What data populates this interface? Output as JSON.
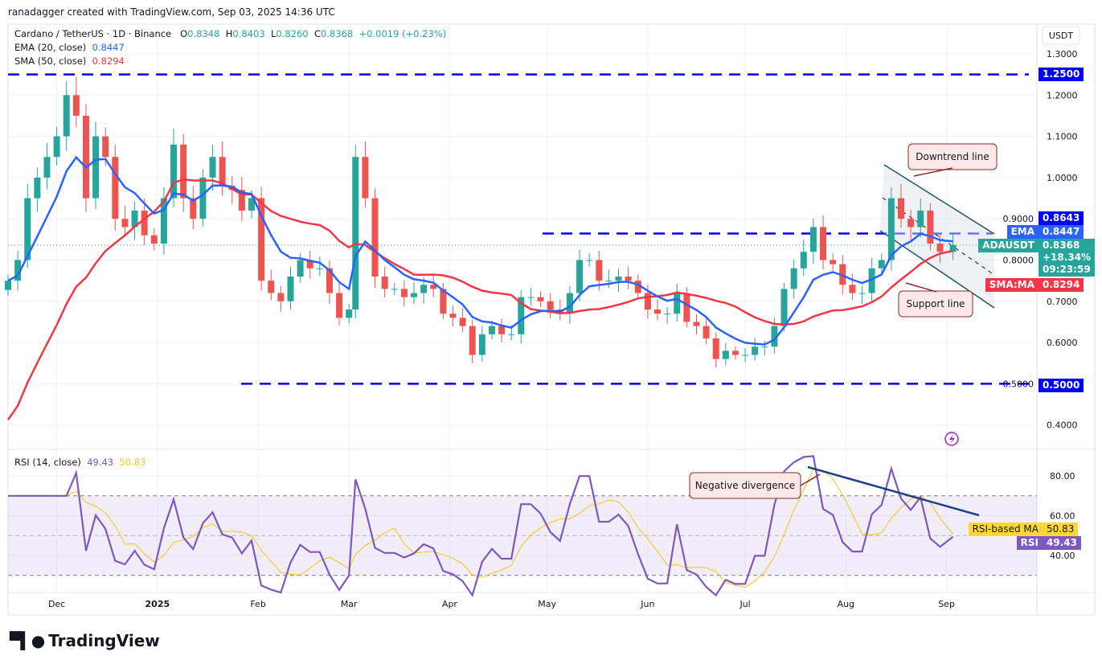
{
  "credit": "ranadagger created with TradingView.com, Sep 03, 2025 14:36 UTC",
  "legend": {
    "symbol": "Cardano / TetherUS · 1D · Binance",
    "o_label": "O",
    "o": "0.8348",
    "h_label": "H",
    "h": "0.8403",
    "l_label": "L",
    "l": "0.8260",
    "c_label": "C",
    "c": "0.8368",
    "change": "+0.0019 (+0.23%)",
    "ema_label": "EMA (20, close)",
    "ema": "0.8447",
    "sma_label": "SMA (50, close)",
    "sma": "0.8294",
    "rsi_label": "RSI (14, close)",
    "rsi": "49.43",
    "rsi_ma": "50.83"
  },
  "currency": "USDT",
  "tags": {
    "level_high": "0.8643",
    "ema_name": "EMA",
    "ema": "0.8447",
    "symbol": "ADAUSDT",
    "price": "0.8368",
    "pct": "+18.34%",
    "countdown": "09:23:59",
    "sma_name": "SMA:MA",
    "sma": "0.8294",
    "level_top": "1.2500",
    "level_bottom": "0.5000",
    "rsi_ma_name": "RSI-based MA",
    "rsi_ma": "50.83",
    "rsi_name": "RSI",
    "rsi": "49.43"
  },
  "annotations": {
    "downtrend": "Downtrend line",
    "support": "Support line",
    "divergence": "Negative divergence"
  },
  "brand": "TradingView",
  "colors": {
    "up": "#26a69a",
    "down": "#ef5350",
    "ema": "#2962ff",
    "sma": "#f23645",
    "rsi": "#7e57c2",
    "rsi_ma": "#f5c518",
    "level": "#0000ff"
  },
  "chart_data": {
    "type": "candlestick",
    "price_axis": {
      "ticks": [
        "1.3000",
        "1.2000",
        "1.1000",
        "1.0000",
        "0.9000",
        "0.8000",
        "0.7000",
        "0.6000",
        "0.5000",
        "0.4000"
      ],
      "range": [
        0.37,
        1.33
      ]
    },
    "rsi_axis": {
      "ticks": [
        "80.00",
        "60.00",
        "40.00"
      ],
      "bands": [
        30,
        70
      ],
      "mid": 50
    },
    "x_ticks": [
      "Dec",
      "2025",
      "Feb",
      "Mar",
      "Apr",
      "May",
      "Jun",
      "Jul",
      "Aug",
      "Sep"
    ],
    "horizontal_levels": [
      1.25,
      0.8643,
      0.5
    ],
    "dates": [
      "2024-11-16",
      "2024-11-19",
      "2024-11-22",
      "2024-11-25",
      "2024-11-28",
      "2024-12-01",
      "2024-12-04",
      "2024-12-07",
      "2024-12-10",
      "2024-12-13",
      "2024-12-16",
      "2024-12-19",
      "2024-12-22",
      "2024-12-25",
      "2024-12-28",
      "2024-12-31",
      "2025-01-03",
      "2025-01-06",
      "2025-01-09",
      "2025-01-12",
      "2025-01-15",
      "2025-01-18",
      "2025-01-21",
      "2025-01-24",
      "2025-01-27",
      "2025-01-30",
      "2025-02-02",
      "2025-02-05",
      "2025-02-08",
      "2025-02-11",
      "2025-02-14",
      "2025-02-17",
      "2025-02-20",
      "2025-02-23",
      "2025-02-26",
      "2025-03-01",
      "2025-03-03",
      "2025-03-06",
      "2025-03-09",
      "2025-03-12",
      "2025-03-15",
      "2025-03-18",
      "2025-03-21",
      "2025-03-24",
      "2025-03-27",
      "2025-03-30",
      "2025-04-02",
      "2025-04-05",
      "2025-04-08",
      "2025-04-11",
      "2025-04-14",
      "2025-04-17",
      "2025-04-20",
      "2025-04-23",
      "2025-04-26",
      "2025-04-29",
      "2025-05-02",
      "2025-05-05",
      "2025-05-08",
      "2025-05-11",
      "2025-05-14",
      "2025-05-17",
      "2025-05-20",
      "2025-05-23",
      "2025-05-26",
      "2025-05-29",
      "2025-06-01",
      "2025-06-04",
      "2025-06-07",
      "2025-06-10",
      "2025-06-13",
      "2025-06-16",
      "2025-06-19",
      "2025-06-22",
      "2025-06-25",
      "2025-06-28",
      "2025-07-01",
      "2025-07-04",
      "2025-07-07",
      "2025-07-10",
      "2025-07-13",
      "2025-07-16",
      "2025-07-19",
      "2025-07-22",
      "2025-07-25",
      "2025-07-28",
      "2025-07-31",
      "2025-08-03",
      "2025-08-06",
      "2025-08-09",
      "2025-08-12",
      "2025-08-15",
      "2025-08-18",
      "2025-08-21",
      "2025-08-24",
      "2025-08-27",
      "2025-08-30",
      "2025-09-03"
    ],
    "close": [
      0.75,
      0.8,
      0.95,
      1.0,
      1.05,
      1.1,
      1.2,
      1.15,
      0.95,
      1.1,
      1.05,
      0.9,
      0.88,
      0.92,
      0.86,
      0.84,
      0.95,
      1.08,
      0.95,
      0.9,
      1.0,
      1.05,
      0.98,
      0.97,
      0.92,
      0.95,
      0.75,
      0.72,
      0.7,
      0.76,
      0.8,
      0.78,
      0.78,
      0.72,
      0.66,
      0.68,
      1.05,
      0.95,
      0.76,
      0.73,
      0.73,
      0.71,
      0.72,
      0.74,
      0.73,
      0.67,
      0.66,
      0.64,
      0.57,
      0.62,
      0.64,
      0.62,
      0.62,
      0.71,
      0.71,
      0.7,
      0.68,
      0.67,
      0.72,
      0.8,
      0.8,
      0.75,
      0.75,
      0.76,
      0.75,
      0.72,
      0.68,
      0.67,
      0.67,
      0.72,
      0.65,
      0.64,
      0.61,
      0.56,
      0.58,
      0.57,
      0.57,
      0.59,
      0.59,
      0.64,
      0.73,
      0.78,
      0.82,
      0.88,
      0.8,
      0.79,
      0.74,
      0.72,
      0.72,
      0.78,
      0.8,
      0.95,
      0.9,
      0.88,
      0.92,
      0.84,
      0.82,
      0.8368
    ]
  }
}
